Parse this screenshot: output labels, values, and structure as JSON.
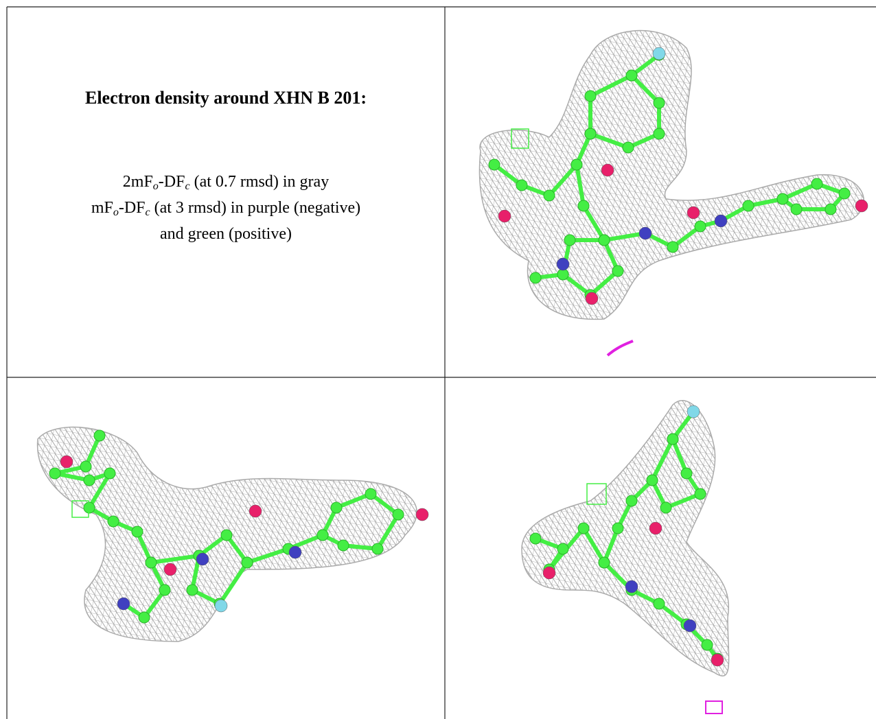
{
  "title": "Electron density around XHN B 201:",
  "legend": [
    [
      "2mF",
      "o",
      "-DF",
      "c",
      " (at 0.7 rmsd) in gray"
    ],
    [
      "mF",
      "o",
      "-DF",
      "c",
      " (at 3 rmsd) in purple (negative)"
    ],
    [
      "and green (positive)"
    ]
  ]
}
